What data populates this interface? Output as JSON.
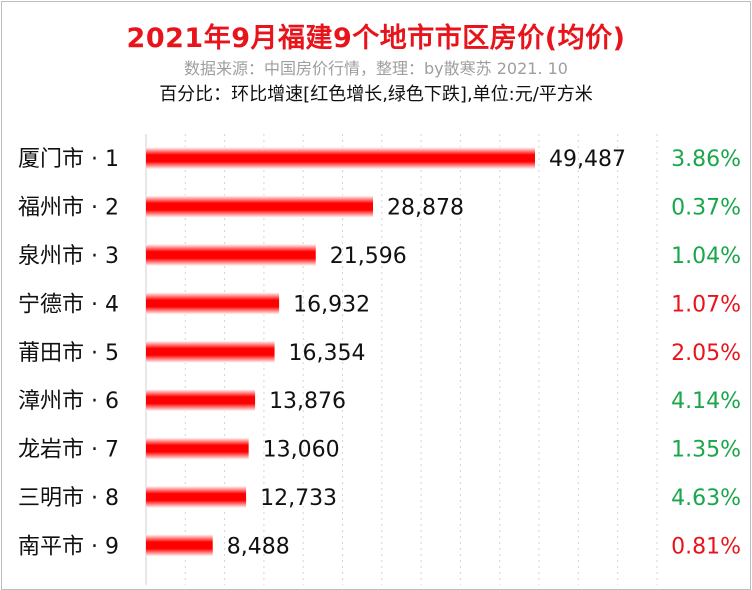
{
  "chart_data": {
    "type": "bar",
    "orientation": "horizontal",
    "title": "2021年9月福建9个地市市区房价(均价)",
    "source_line": "数据来源：中国房价行情，整理：by散寒苏  2021. 10",
    "subtitle": "百分比：环比增速[红色增长,绿色下跌],单位:元/平方米",
    "categories": [
      "厦门市 · 1",
      "福州市 · 2",
      "泉州市 · 3",
      "宁德市 · 4",
      "莆田市 · 5",
      "漳州市 · 6",
      "龙岩市 · 7",
      "三明市 · 8",
      "南平市 · 9"
    ],
    "values": [
      49487,
      28878,
      21596,
      16932,
      16354,
      13876,
      13060,
      12733,
      8488
    ],
    "value_labels": [
      "49,487",
      "28,878",
      "21,596",
      "16,932",
      "16,354",
      "13,876",
      "13,060",
      "12,733",
      "8,488"
    ],
    "pct_labels": [
      "3.86%",
      "0.37%",
      "1.04%",
      "1.07%",
      "2.05%",
      "4.14%",
      "1.35%",
      "4.63%",
      "0.81%"
    ],
    "pct_colors": [
      "#1aa64a",
      "#1aa64a",
      "#1aa64a",
      "#e8141c",
      "#e8141c",
      "#1aa64a",
      "#1aa64a",
      "#1aa64a",
      "#e8141c"
    ],
    "xlim": [
      0,
      50000
    ],
    "grid": true,
    "bar_color": "#ff0000"
  }
}
